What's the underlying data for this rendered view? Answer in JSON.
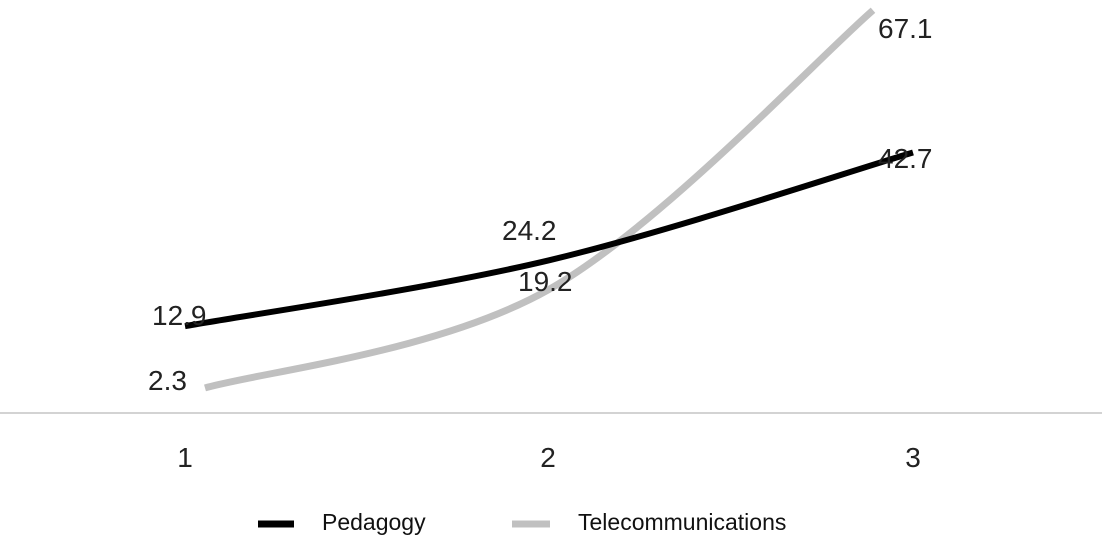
{
  "chart_data": {
    "type": "line",
    "categories": [
      "1",
      "2",
      "3"
    ],
    "series": [
      {
        "name": "Pedagogy",
        "values": [
          12.9,
          24.2,
          42.7
        ],
        "labels": [
          "12.9",
          "24.2",
          "42.7"
        ],
        "color": "#000000"
      },
      {
        "name": "Telecommunications",
        "values": [
          2.3,
          19.2,
          67.1
        ],
        "labels": [
          "2.3",
          "19.2",
          "67.1"
        ],
        "color": "#c0c0c0"
      }
    ],
    "title": "",
    "xlabel": "",
    "ylabel": "",
    "ylim": [
      -2,
      68
    ],
    "grid": false,
    "legend": "bottom",
    "axis_color": "#d3d3d3"
  }
}
